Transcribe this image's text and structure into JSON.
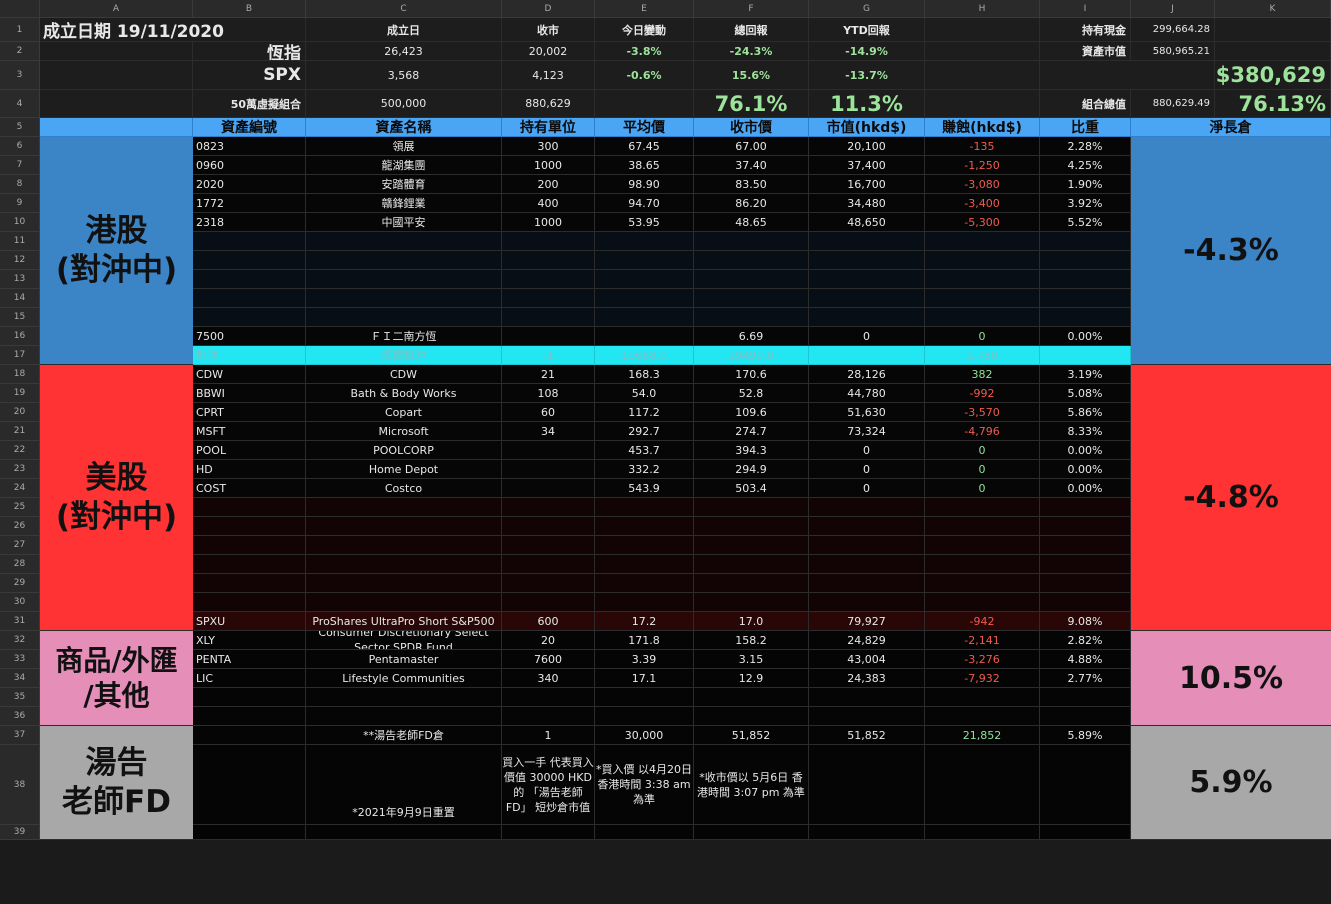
{
  "columns": [
    "A",
    "B",
    "C",
    "D",
    "E",
    "F",
    "G",
    "H",
    "I",
    "J",
    "K"
  ],
  "rows": [
    "1",
    "2",
    "3",
    "4",
    "5",
    "6",
    "7",
    "8",
    "9",
    "10",
    "11",
    "12",
    "13",
    "14",
    "15",
    "16",
    "17",
    "18",
    "19",
    "20",
    "21",
    "22",
    "23",
    "24",
    "25",
    "26",
    "27",
    "28",
    "29",
    "30",
    "31",
    "32",
    "33",
    "34",
    "35",
    "36",
    "37",
    "38",
    "39"
  ],
  "summary": {
    "start_date": "成立日期 19/11/2020",
    "headers": [
      "成立日",
      "收市",
      "今日變動",
      "總回報",
      "YTD回報"
    ],
    "hsi": {
      "label": "恆指",
      "start": "26,423",
      "close": "20,002",
      "day": "-3.8%",
      "total": "-24.3%",
      "ytd": "-14.9%"
    },
    "spx": {
      "label": "SPX",
      "start": "3,568",
      "close": "4,123",
      "day": "-0.6%",
      "total": "15.6%",
      "ytd": "-13.7%"
    },
    "portfolio": {
      "label": "50萬虛擬組合",
      "start": "500,000",
      "close": "880,629",
      "total": "76.1%",
      "ytd": "11.3%"
    },
    "cash_label": "持有現金",
    "cash": "299,664.28",
    "assets_label": "資產市值",
    "assets": "580,965.21",
    "gain": "$380,629",
    "total_label": "組合總值",
    "total": "880,629.49",
    "total_pct": "76.13%"
  },
  "table_headers": [
    "資產編號",
    "資產名稱",
    "持有單位",
    "平均價",
    "收市價",
    "市值(hkd$)",
    "賺蝕(hkd$)",
    "比重",
    "淨長倉"
  ],
  "hk_rows": [
    {
      "code": "0823",
      "name": "領展",
      "units": "300",
      "avg": "67.45",
      "close": "67.00",
      "value": "20,100",
      "pl": "-135",
      "weight": "2.28%"
    },
    {
      "code": "0960",
      "name": "龍湖集團",
      "units": "1000",
      "avg": "38.65",
      "close": "37.40",
      "value": "37,400",
      "pl": "-1,250",
      "weight": "4.25%"
    },
    {
      "code": "2020",
      "name": "安踏體育",
      "units": "200",
      "avg": "98.90",
      "close": "83.50",
      "value": "16,700",
      "pl": "-3,080",
      "weight": "1.90%"
    },
    {
      "code": "1772",
      "name": "贛鋒鋰業",
      "units": "400",
      "avg": "94.70",
      "close": "86.20",
      "value": "34,480",
      "pl": "-3,400",
      "weight": "3.92%"
    },
    {
      "code": "2318",
      "name": "中國平安",
      "units": "1000",
      "avg": "53.95",
      "close": "48.65",
      "value": "48,650",
      "pl": "-5,300",
      "weight": "5.52%"
    }
  ],
  "hk_hedge": {
    "code": "7500",
    "name": "ＦＩ二南方恆",
    "close": "6.69",
    "value": "0",
    "pl": "0",
    "weight": "0.00%"
  },
  "hk_hedge2": {
    "code": "對沖",
    "name": "細價對沖",
    "units": "-1",
    "avg": "19668.0",
    "close": "19490.0",
    "pl": "1,780"
  },
  "us_rows": [
    {
      "code": "CDW",
      "name": "CDW",
      "units": "21",
      "avg": "168.3",
      "close": "170.6",
      "value": "28,126",
      "pl": "382",
      "weight": "3.19%",
      "plc": "pos"
    },
    {
      "code": "BBWI",
      "name": "Bath & Body Works",
      "units": "108",
      "avg": "54.0",
      "close": "52.8",
      "value": "44,780",
      "pl": "-992",
      "weight": "5.08%",
      "plc": "neg"
    },
    {
      "code": "CPRT",
      "name": "Copart",
      "units": "60",
      "avg": "117.2",
      "close": "109.6",
      "value": "51,630",
      "pl": "-3,570",
      "weight": "5.86%",
      "plc": "neg"
    },
    {
      "code": "MSFT",
      "name": "Microsoft",
      "units": "34",
      "avg": "292.7",
      "close": "274.7",
      "value": "73,324",
      "pl": "-4,796",
      "weight": "8.33%",
      "plc": "neg"
    },
    {
      "code": "POOL",
      "name": "POOLCORP",
      "units": "",
      "avg": "453.7",
      "close": "394.3",
      "value": "0",
      "pl": "0",
      "weight": "0.00%",
      "plc": "pos"
    },
    {
      "code": "HD",
      "name": "Home Depot",
      "units": "",
      "avg": "332.2",
      "close": "294.9",
      "value": "0",
      "pl": "0",
      "weight": "0.00%",
      "plc": "pos"
    },
    {
      "code": "COST",
      "name": "Costco",
      "units": "",
      "avg": "543.9",
      "close": "503.4",
      "value": "0",
      "pl": "0",
      "weight": "0.00%",
      "plc": "pos"
    }
  ],
  "us_hedge": {
    "code": "SPXU",
    "name": "ProShares UltraPro Short S&P500",
    "units": "600",
    "avg": "17.2",
    "close": "17.0",
    "value": "79,927",
    "pl": "-942",
    "weight": "9.08%"
  },
  "other_rows": [
    {
      "code": "XLY",
      "name": "Consumer Discretionary Select Sector SPDR Fund",
      "units": "20",
      "avg": "171.8",
      "close": "158.2",
      "value": "24,829",
      "pl": "-2,141",
      "weight": "2.82%"
    },
    {
      "code": "PENTA",
      "name": "Pentamaster",
      "units": "7600",
      "avg": "3.39",
      "close": "3.15",
      "value": "43,004",
      "pl": "-3,276",
      "weight": "4.88%"
    },
    {
      "code": "LIC",
      "name": "Lifestyle Communities",
      "units": "340",
      "avg": "17.1",
      "close": "12.9",
      "value": "24,383",
      "pl": "-7,932",
      "weight": "2.77%"
    }
  ],
  "fd_row": {
    "name": "**湯告老師FD倉",
    "units": "1",
    "avg": "30,000",
    "close": "51,852",
    "value": "51,852",
    "pl": "21,852",
    "weight": "5.89%"
  },
  "fd_notes": {
    "reset": "*2021年9月9日重置",
    "units": "買入一手 代表買入價值 30000 HKD的 「湯告老師FD」 短炒倉市值",
    "avg": "*買入價 以4月20日 香港時間 3:38 am 為準",
    "close": "*收市價以 5月6日 香港時間 3:07 pm 為準"
  },
  "categories": {
    "hk": {
      "label": "港股 (對沖中)",
      "net": "-4.3%",
      "color": "#3b84c6"
    },
    "us": {
      "label": "美股 (對沖中)",
      "net": "-4.8%",
      "color": "#ff3333"
    },
    "other": {
      "label": "商品/外匯 /其他",
      "net": "10.5%",
      "color": "#e58eb8"
    },
    "fd": {
      "label": "湯告 老師FD",
      "net": "5.9%",
      "color": "#a8a8a8"
    }
  }
}
